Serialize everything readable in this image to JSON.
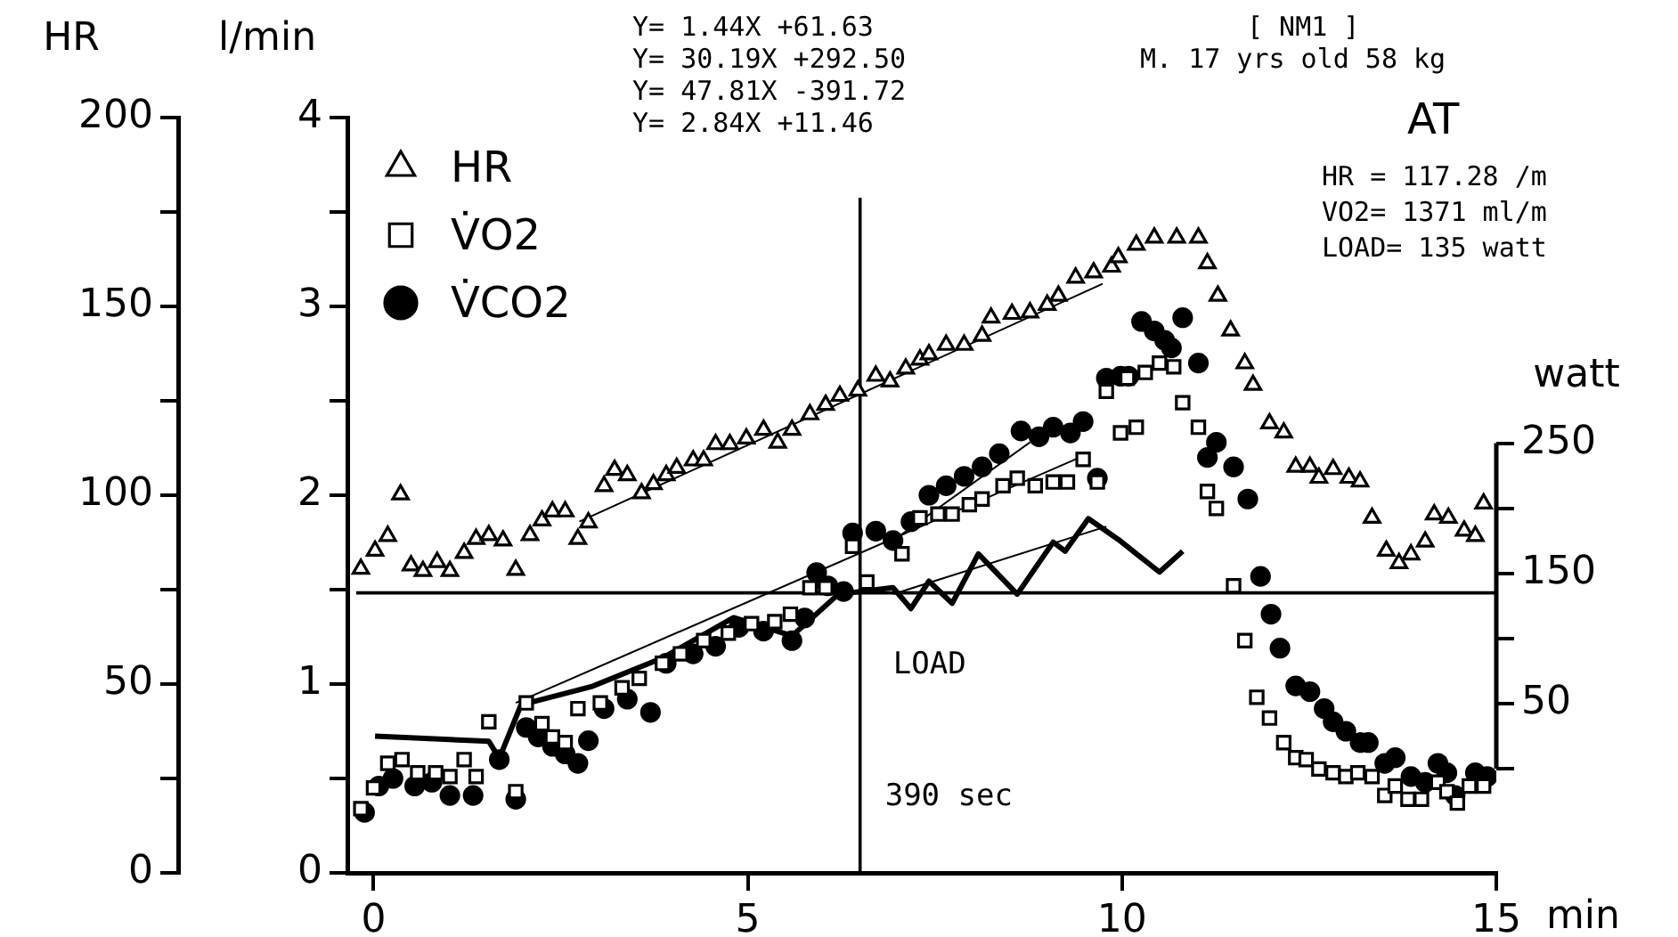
{
  "chart_data": {
    "type": "scatter",
    "xlabel": "min",
    "ylabel": "HR",
    "y2label": "l/min",
    "y3label": "watt",
    "xlim": [
      -0.35,
      15
    ],
    "xticks": [
      0,
      5,
      10,
      15
    ],
    "ylim": [
      0,
      200
    ],
    "yticks": [
      0,
      {
        "value": 25,
        "label": null
      },
      50,
      {
        "value": 75,
        "label": null
      },
      100,
      {
        "value": 125,
        "label": null
      },
      150,
      {
        "value": 175,
        "label": null
      },
      200
    ],
    "y2lim": [
      0,
      4
    ],
    "y2ticks": [
      0,
      {
        "value": 0.5,
        "label": null
      },
      1,
      {
        "value": 1.5,
        "label": null
      },
      2,
      {
        "value": 2.5,
        "label": null
      },
      3,
      {
        "value": 3.5,
        "label": null
      },
      4
    ],
    "y3lim": [
      -80,
      500
    ],
    "y3ticks": [
      {
        "value": 0,
        "label": null
      },
      50,
      {
        "value": 100,
        "label": null
      },
      150,
      {
        "value": 200,
        "label": null
      },
      250
    ],
    "grid": false,
    "legend": "top left",
    "series": [
      {
        "name": "HR",
        "marker": "triangle",
        "axis": "y",
        "color": "#000000",
        "x": [
          -0.17,
          0.02,
          0.19,
          0.36,
          0.5,
          0.66,
          0.85,
          1.02,
          1.21,
          1.37,
          1.54,
          1.73,
          1.9,
          2.09,
          2.25,
          2.39,
          2.56,
          2.73,
          2.87,
          3.08,
          3.22,
          3.39,
          3.58,
          3.74,
          3.91,
          4.05,
          4.27,
          4.41,
          4.57,
          4.76,
          4.98,
          5.21,
          5.4,
          5.59,
          5.83,
          6.04,
          6.23,
          6.47,
          6.71,
          6.9,
          7.11,
          7.3,
          7.42,
          7.65,
          7.89,
          8.13,
          8.25,
          8.53,
          8.77,
          9.0,
          9.15,
          9.38,
          9.62,
          9.86,
          9.95,
          10.19,
          10.43,
          10.73,
          11.02,
          11.14,
          11.28,
          11.45,
          11.64,
          11.75,
          11.97,
          12.16,
          12.32,
          12.51,
          12.63,
          12.82,
          13.03,
          13.18,
          13.34,
          13.53,
          13.7,
          13.86,
          14.05,
          14.17,
          14.36,
          14.57,
          14.72,
          14.83
        ],
        "values": [
          80.5,
          85.3,
          89.2,
          100.2,
          81.4,
          79.9,
          82.3,
          79.9,
          84.7,
          88.4,
          89.4,
          88,
          80.2,
          89.4,
          93.3,
          95.7,
          95.7,
          88.4,
          92.8,
          102.4,
          106.7,
          105.3,
          100.5,
          102.9,
          105.3,
          107.2,
          109.2,
          109.2,
          113.5,
          113.5,
          115,
          117.3,
          113.9,
          117.3,
          121.4,
          123.9,
          126.3,
          127.7,
          131.6,
          130.1,
          133.5,
          135.9,
          137.3,
          139.8,
          139.8,
          142.2,
          147,
          148,
          148.4,
          150.4,
          152.8,
          157.6,
          159,
          160.5,
          163,
          166.3,
          168.2,
          168.2,
          168.2,
          161.4,
          152.8,
          143.6,
          134.9,
          129.2,
          119,
          116.6,
          107.5,
          107.5,
          104.6,
          106.9,
          104.6,
          103.6,
          94,
          85.3,
          82,
          84.3,
          87.7,
          94.9,
          94,
          90.6,
          89.2,
          97.8
        ]
      },
      {
        "name": "V̇O2",
        "marker": "square",
        "axis": "y2",
        "color": "#000000",
        "x": [
          -0.17,
          0,
          0.19,
          0.38,
          0.59,
          0.83,
          1.02,
          1.21,
          1.37,
          1.54,
          1.9,
          2.04,
          2.25,
          2.39,
          2.56,
          2.73,
          3.03,
          3.32,
          3.55,
          3.86,
          4.1,
          4.41,
          4.74,
          5.05,
          5.36,
          5.57,
          5.83,
          6.04,
          6.4,
          6.59,
          7.06,
          7.3,
          7.54,
          7.73,
          7.96,
          8.13,
          8.41,
          8.6,
          8.84,
          9.08,
          9.27,
          9.48,
          9.67,
          9.79,
          9.98,
          10.07,
          10.19,
          10.31,
          10.5,
          10.69,
          10.81,
          11.02,
          11.14,
          11.26,
          11.49,
          11.64,
          11.8,
          11.97,
          12.16,
          12.32,
          12.46,
          12.63,
          12.82,
          12.99,
          13.15,
          13.34,
          13.51,
          13.65,
          13.82,
          14.0,
          14.22,
          14.34,
          14.48,
          14.64,
          14.83
        ],
        "values": [
          0.34,
          0.45,
          0.58,
          0.6,
          0.53,
          0.53,
          0.51,
          0.6,
          0.51,
          0.8,
          0.43,
          0.9,
          0.79,
          0.72,
          0.69,
          0.87,
          0.9,
          0.98,
          1.03,
          1.11,
          1.16,
          1.23,
          1.27,
          1.32,
          1.33,
          1.37,
          1.51,
          1.51,
          1.73,
          1.54,
          1.69,
          1.88,
          1.9,
          1.9,
          1.95,
          1.98,
          2.05,
          2.09,
          2.05,
          2.07,
          2.07,
          2.19,
          2.07,
          2.55,
          2.33,
          2.62,
          2.36,
          2.65,
          2.7,
          2.68,
          2.49,
          2.36,
          2.02,
          1.93,
          1.52,
          1.23,
          0.93,
          0.82,
          0.69,
          0.61,
          0.6,
          0.55,
          0.53,
          0.51,
          0.53,
          0.51,
          0.41,
          0.46,
          0.39,
          0.39,
          0.48,
          0.43,
          0.37,
          0.46,
          0.46
        ]
      },
      {
        "name": "V̇CO2",
        "marker": "circle",
        "axis": "y2",
        "color": "#000000",
        "x": [
          -0.12,
          0.07,
          0.26,
          0.55,
          0.78,
          1.02,
          1.33,
          1.68,
          1.9,
          2.04,
          2.2,
          2.39,
          2.56,
          2.73,
          2.87,
          3.08,
          3.39,
          3.7,
          3.91,
          4.27,
          4.57,
          4.88,
          5.21,
          5.59,
          5.76,
          5.92,
          6.07,
          6.28,
          6.4,
          6.71,
          6.94,
          7.18,
          7.42,
          7.65,
          7.89,
          8.13,
          8.36,
          8.65,
          8.89,
          9.08,
          9.31,
          9.48,
          9.67,
          9.79,
          9.98,
          10.09,
          10.26,
          10.43,
          10.57,
          10.66,
          10.81,
          11.02,
          11.14,
          11.26,
          11.49,
          11.68,
          11.85,
          11.99,
          12.11,
          12.32,
          12.51,
          12.7,
          12.82,
          12.99,
          13.18,
          13.29,
          13.51,
          13.65,
          13.86,
          14.05,
          14.22,
          14.34,
          14.45,
          14.72,
          14.88
        ],
        "values": [
          0.32,
          0.46,
          0.5,
          0.46,
          0.48,
          0.41,
          0.41,
          0.6,
          0.39,
          0.77,
          0.72,
          0.67,
          0.63,
          0.58,
          0.7,
          0.87,
          0.92,
          0.85,
          1.11,
          1.16,
          1.2,
          1.3,
          1.28,
          1.23,
          1.35,
          1.59,
          1.52,
          1.49,
          1.8,
          1.81,
          1.76,
          1.86,
          2.0,
          2.05,
          2.1,
          2.15,
          2.22,
          2.34,
          2.31,
          2.36,
          2.33,
          2.39,
          2.09,
          2.62,
          2.63,
          2.63,
          2.92,
          2.87,
          2.82,
          2.78,
          2.94,
          2.7,
          2.2,
          2.28,
          2.15,
          1.98,
          1.57,
          1.37,
          1.19,
          0.99,
          0.96,
          0.87,
          0.8,
          0.75,
          0.69,
          0.69,
          0.58,
          0.61,
          0.51,
          0.48,
          0.58,
          0.53,
          0.41,
          0.53,
          0.51
        ]
      },
      {
        "type": "line",
        "marker": "none",
        "axis": "y3",
        "color": "#000000",
        "x": [
          0.02,
          1.54,
          1.68,
          1.97,
          2.91,
          3.86,
          4.81,
          5.59,
          6.21,
          6.94,
          7.18,
          7.42,
          7.73,
          8.08,
          8.6,
          9.08,
          9.24,
          9.55,
          9.95,
          10.5,
          10.81
        ],
        "values": [
          25,
          21,
          8,
          49,
          63,
          85,
          116,
          102,
          134,
          139,
          123,
          144,
          127,
          165,
          134,
          174,
          167,
          192,
          176,
          151,
          167
        ]
      },
      {
        "type": "line",
        "marker": "none",
        "axis": "y",
        "color": "#000000",
        "x": [
          2.75,
          9.74
        ],
        "values": [
          93,
          156
        ]
      },
      {
        "type": "line",
        "marker": "none",
        "axis": "y2",
        "color": "#000000",
        "x": [
          1.9,
          9.55
        ],
        "values": [
          0.9,
          2.22
        ]
      },
      {
        "type": "line",
        "marker": "none",
        "axis": "y2",
        "color": "#000000",
        "x": [
          6.94,
          8.77
        ],
        "values": [
          1.76,
          2.28
        ]
      },
      {
        "type": "line",
        "marker": "none",
        "axis": "y3",
        "color": "#000000",
        "x": [
          6.94,
          9.79
        ],
        "values": [
          134,
          186
        ]
      }
    ],
    "ref_lines": [
      {
        "axis": "x",
        "value": 6.5,
        "label": "390 sec"
      },
      {
        "axis": "y3",
        "value": 135,
        "label": "LOAD"
      }
    ],
    "annotations": [
      "Y= 1.44X +61.63",
      "Y= 30.19X +292.50",
      "Y= 47.81X -391.72",
      "Y= 2.84X +11.46",
      "[ NM1 ]",
      "M. 17 yrs old 58 kg",
      "AT",
      "HR = 117.28 /m",
      "VO2= 1371 ml/m",
      "LOAD= 135 watt"
    ]
  }
}
